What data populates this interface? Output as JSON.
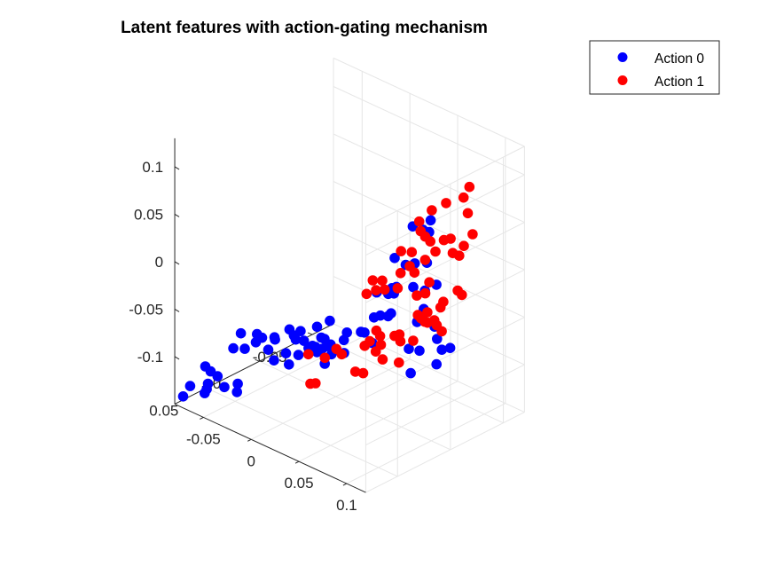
{
  "chart_data": {
    "type": "scatter",
    "projection": "3d",
    "title": "Latent features with action-gating mechanism",
    "xlabel": "",
    "ylabel": "",
    "zlabel": "",
    "grid": true,
    "legend_position": "top-right",
    "axes": {
      "x": {
        "range": [
          -0.08,
          0.12
        ],
        "ticks": [
          -0.05,
          0,
          0.05,
          0.1
        ],
        "tick_labels": [
          "-0.05",
          "0",
          "0.05",
          "0.1"
        ]
      },
      "y": {
        "range": [
          -0.07,
          0.08
        ],
        "ticks": [
          -0.05,
          0,
          0.05
        ],
        "tick_labels": [
          "-0.05",
          "0",
          "0.05"
        ]
      },
      "z": {
        "range": [
          -0.15,
          0.13
        ],
        "ticks": [
          -0.1,
          -0.05,
          0,
          0.05,
          0.1
        ],
        "tick_labels": [
          "-0.1",
          "-0.05",
          "0",
          "0.05",
          "0.1"
        ]
      }
    },
    "series": [
      {
        "name": "Action 0",
        "color": "#0000ff",
        "points": [
          [
            -0.0759,
            0.0548,
            -0.1226
          ],
          [
            -0.0712,
            0.0734,
            -0.1306
          ],
          [
            -0.0701,
            0.081,
            -0.1367
          ],
          [
            -0.0681,
            0.0568,
            -0.1231
          ],
          [
            -0.0643,
            0.0628,
            -0.1309
          ],
          [
            -0.0585,
            0.059,
            -0.1225
          ],
          [
            -0.0618,
            0.0662,
            -0.1336
          ],
          [
            -0.0614,
            0.0685,
            -0.1363
          ],
          [
            -0.0484,
            0.0616,
            -0.1278
          ],
          [
            -0.0418,
            0.0549,
            -0.125
          ],
          [
            -0.039,
            0.0582,
            -0.1305
          ],
          [
            -0.0473,
            0.047,
            -0.0788
          ],
          [
            -0.0468,
            0.0546,
            -0.0901
          ],
          [
            -0.0386,
            0.0512,
            -0.0887
          ],
          [
            -0.0364,
            0.0416,
            -0.0777
          ],
          [
            -0.0339,
            0.045,
            -0.0832
          ],
          [
            -0.0317,
            0.0411,
            -0.0796
          ],
          [
            -0.0226,
            0.0434,
            -0.0867
          ],
          [
            -0.0232,
            0.037,
            -0.0775
          ],
          [
            -0.022,
            0.0376,
            -0.0789
          ],
          [
            -0.0156,
            0.0297,
            -0.0697
          ],
          [
            -0.0106,
            0.0301,
            -0.0735
          ],
          [
            -0.008,
            0.0261,
            -0.07
          ],
          [
            -0.0004,
            0.035,
            -0.0866
          ],
          [
            -0.0244,
            0.0364,
            -0.1027
          ],
          [
            -0.0186,
            0.0303,
            -0.0959
          ],
          [
            -0.013,
            0.0326,
            -0.1038
          ],
          [
            -0.016,
            0.0234,
            -0.0841
          ],
          [
            -0.009,
            0.022,
            -0.083
          ],
          [
            -0.003,
            0.0231,
            -0.0873
          ],
          [
            0.002,
            0.021,
            -0.0849
          ],
          [
            0.006,
            0.0161,
            -0.0773
          ],
          [
            -0.003,
            0.015,
            -0.0693
          ],
          [
            0.003,
            0.0205,
            -0.0902
          ],
          [
            0.002,
            0.0155,
            -0.0781
          ],
          [
            -0.001,
            0.0212,
            -0.085
          ],
          [
            0.001,
            0.0223,
            -0.0879
          ],
          [
            0.007,
            0.0193,
            -0.0855
          ],
          [
            0.01,
            0.0177,
            -0.0822
          ],
          [
            0.004,
            0.0093,
            -0.063
          ],
          [
            0.011,
            0.0148,
            -0.0816
          ],
          [
            0.011,
            0.0204,
            -0.0988
          ],
          [
            0.014,
            0.0167,
            -0.0894
          ],
          [
            0.021,
            0.0114,
            -0.0742
          ],
          [
            0.024,
            0.0138,
            -0.0851
          ],
          [
            0.021,
            0.0084,
            -0.068
          ],
          [
            0.033,
            0.006,
            -0.0631
          ],
          [
            0.036,
            0.0054,
            -0.0627
          ],
          [
            0.04,
            0.0,
            -0.048
          ],
          [
            0.044,
            0.0053,
            -0.0699
          ],
          [
            0.045,
            -0.0015,
            -0.0445
          ],
          [
            0.052,
            -0.0025,
            -0.0425
          ],
          [
            0.052,
            -0.0103,
            -0.016
          ],
          [
            0.053,
            -0.0071,
            -0.0207
          ],
          [
            0.056,
            -0.0155,
            0.0062
          ],
          [
            0.043,
            -0.0168,
            0.0066
          ],
          [
            0.054,
            -0.024,
            0.0409
          ],
          [
            0.061,
            -0.0272,
            0.0389
          ],
          [
            0.066,
            -0.0301,
            0.0495
          ],
          [
            0.067,
            -0.0277,
            0.0389
          ],
          [
            0.062,
            -0.0187,
            0.0086
          ],
          [
            0.07,
            -0.0229,
            0.0107
          ],
          [
            0.065,
            -0.0145,
            -0.0125
          ],
          [
            0.076,
            -0.0156,
            -0.0118
          ],
          [
            0.078,
            -0.0127,
            -0.0286
          ],
          [
            0.082,
            -0.0211,
            -0.0058
          ],
          [
            0.088,
            -0.0139,
            -0.0432
          ],
          [
            0.093,
            -0.0117,
            -0.0525
          ],
          [
            0.098,
            -0.0117,
            -0.0616
          ],
          [
            0.097,
            -0.0076,
            -0.0751
          ],
          [
            0.105,
            -0.0133,
            -0.0574
          ],
          [
            0.071,
            -0.0127,
            -0.0455
          ],
          [
            0.072,
            -0.004,
            -0.0684
          ],
          [
            0.081,
            0.0023,
            -0.0863
          ],
          [
            0.082,
            -0.0051,
            -0.0663
          ],
          [
            0.034,
            -0.0079,
            -0.0289
          ],
          [
            0.044,
            -0.0099,
            -0.0269
          ],
          [
            0.052,
            -0.0052,
            -0.041
          ],
          [
            0.046,
            -0.0115,
            -0.0208
          ]
        ]
      },
      {
        "name": "Action 1",
        "color": "#ff0000",
        "points": [
          [
            0.0086,
            0.0318,
            -0.1145
          ],
          [
            0.0128,
            0.0307,
            -0.1127
          ],
          [
            -0.0046,
            0.0218,
            -0.0952
          ],
          [
            0.0169,
            0.0256,
            -0.0868
          ],
          [
            0.0243,
            0.0214,
            -0.0764
          ],
          [
            0.0238,
            0.0159,
            -0.0853
          ],
          [
            0.0381,
            0.0159,
            -0.097
          ],
          [
            0.0393,
            0.0082,
            -0.0736
          ],
          [
            0.0427,
            0.0065,
            -0.0681
          ],
          [
            0.0453,
            0.015,
            -0.0957
          ],
          [
            0.0461,
            0.0033,
            -0.0572
          ],
          [
            0.0506,
            0.0038,
            -0.0605
          ],
          [
            0.0509,
            0.0082,
            -0.0742
          ],
          [
            0.0531,
            0.0053,
            -0.0677
          ],
          [
            0.0588,
            0.0089,
            -0.0784
          ],
          [
            0.062,
            0.0004,
            -0.0569
          ],
          [
            0.0658,
            -0.0007,
            -0.0543
          ],
          [
            0.068,
            0.0003,
            -0.0599
          ],
          [
            0.072,
            0.0054,
            -0.0776
          ],
          [
            0.0755,
            -0.0094,
            -0.0342
          ],
          [
            0.0774,
            -0.0033,
            -0.0569
          ],
          [
            0.0781,
            -0.01,
            -0.0368
          ],
          [
            0.0818,
            -0.0127,
            -0.0303
          ],
          [
            0.0819,
            -0.0102,
            -0.0387
          ],
          [
            0.0839,
            -0.0109,
            -0.0392
          ],
          [
            0.0889,
            -0.0128,
            -0.0354
          ],
          [
            0.0919,
            -0.0124,
            -0.0389
          ],
          [
            0.0912,
            -0.0166,
            -0.0229
          ],
          [
            0.092,
            -0.0186,
            -0.0178
          ],
          [
            0.0968,
            -0.0127,
            -0.0433
          ],
          [
            0.1008,
            -0.0242,
            -0.005
          ],
          [
            0.104,
            -0.0253,
            -0.0087
          ],
          [
            0.0903,
            -0.029,
            0.0269
          ],
          [
            0.0974,
            -0.0287,
            0.0276
          ],
          [
            0.098,
            -0.0325,
            0.036
          ],
          [
            0.103,
            -0.0363,
            0.0486
          ],
          [
            0.095,
            -0.039,
            0.0655
          ],
          [
            0.088,
            -0.0413,
            0.0774
          ],
          [
            0.092,
            -0.0432,
            0.0894
          ],
          [
            0.076,
            -0.0356,
            0.0692
          ],
          [
            0.064,
            -0.033,
            0.0575
          ],
          [
            0.085,
            -0.0318,
            0.038
          ],
          [
            0.08,
            -0.0299,
            0.0353
          ],
          [
            0.07,
            -0.0261,
            0.0314
          ],
          [
            0.076,
            -0.0256,
            0.0238
          ],
          [
            0.069,
            -0.0222,
            0.0137
          ],
          [
            0.078,
            -0.018,
            -0.0034
          ],
          [
            0.077,
            -0.015,
            -0.0138
          ],
          [
            0.064,
            -0.0165,
            0.0012
          ],
          [
            0.059,
            -0.0166,
            0.0055
          ],
          [
            0.071,
            -0.0125,
            -0.0175
          ],
          [
            0.053,
            -0.0134,
            -0.0027
          ],
          [
            0.055,
            -0.0088,
            -0.0152
          ],
          [
            0.044,
            -0.0064,
            -0.0204
          ],
          [
            0.04,
            -0.0078,
            -0.0136
          ],
          [
            0.038,
            -0.0037,
            -0.0223
          ],
          [
            0.057,
            -0.0203,
            0.0173
          ],
          [
            0.046,
            -0.0201,
            0.0133
          ],
          [
            0.064,
            -0.0267,
            0.0333
          ],
          [
            0.058,
            -0.0278,
            0.0357
          ],
          [
            0.055,
            -0.0292,
            0.0436
          ],
          [
            0.032,
            -0.006,
            -0.016
          ],
          [
            0.03,
            -0.002,
            -0.029
          ]
        ]
      }
    ]
  },
  "legend": {
    "entries": [
      "Action 0",
      "Action 1"
    ]
  }
}
